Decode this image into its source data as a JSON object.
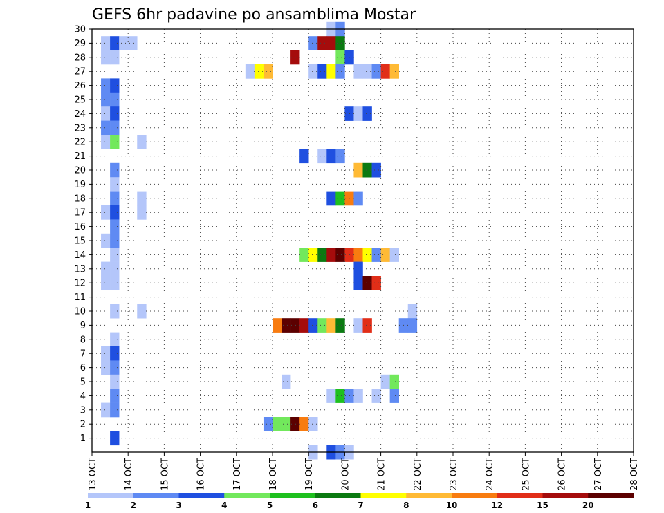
{
  "chart_data": {
    "type": "heatmap",
    "title": "GEFS 6hr padavine po ansamblima Mostar",
    "grid": true,
    "x_tick_labels": [
      "13 OCT",
      "14 OCT",
      "15 OCT",
      "16 OCT",
      "17 OCT",
      "18 OCT",
      "19 OCT",
      "20 OCT",
      "21 OCT",
      "22 OCT",
      "23 OCT",
      "24 OCT",
      "25 OCT",
      "26 OCT",
      "27 OCT",
      "28 OCT"
    ],
    "y_tick_labels": [
      "1",
      "2",
      "3",
      "4",
      "5",
      "6",
      "7",
      "8",
      "9",
      "10",
      "11",
      "12",
      "13",
      "14",
      "15",
      "16",
      "17",
      "18",
      "19",
      "20",
      "21",
      "22",
      "23",
      "24",
      "25",
      "26",
      "27",
      "28",
      "29",
      "30"
    ],
    "y_range": [
      0,
      30
    ],
    "steps_per_day": 4,
    "colorbar": {
      "colors": [
        "#b4c6fa",
        "#5f8af3",
        "#1f4fe0",
        "#72e85c",
        "#1ec01e",
        "#0b7a11",
        "#ffff00",
        "#ffba35",
        "#f87c10",
        "#e12e18",
        "#a50c0c",
        "#5c0000"
      ],
      "labels": [
        "1",
        "2",
        "3",
        "4",
        "5",
        "6",
        "7",
        "8",
        "10",
        "12",
        "15",
        "20"
      ]
    },
    "cells": [
      {
        "m": 30,
        "s": [
          [
            26,
            0
          ],
          [
            27,
            1
          ]
        ]
      },
      {
        "m": 29,
        "s": [
          [
            1,
            0
          ],
          [
            2,
            2
          ],
          [
            3,
            0
          ],
          [
            4,
            0
          ],
          [
            24,
            1
          ],
          [
            25,
            10
          ],
          [
            26,
            10
          ],
          [
            27,
            5
          ]
        ]
      },
      {
        "m": 28,
        "s": [
          [
            1,
            0
          ],
          [
            2,
            0
          ],
          [
            22,
            10
          ],
          [
            27,
            3
          ],
          [
            28,
            2
          ]
        ]
      },
      {
        "m": 27,
        "s": [
          [
            17,
            0
          ],
          [
            18,
            6
          ],
          [
            19,
            7
          ],
          [
            24,
            0
          ],
          [
            25,
            2
          ],
          [
            26,
            6
          ],
          [
            27,
            1
          ],
          [
            29,
            0
          ],
          [
            30,
            0
          ],
          [
            31,
            1
          ],
          [
            32,
            9
          ],
          [
            33,
            7
          ]
        ]
      },
      {
        "m": 26,
        "s": [
          [
            1,
            1
          ],
          [
            2,
            2
          ]
        ]
      },
      {
        "m": 25,
        "s": [
          [
            1,
            1
          ],
          [
            2,
            1
          ]
        ]
      },
      {
        "m": 24,
        "s": [
          [
            1,
            0
          ],
          [
            2,
            2
          ],
          [
            28,
            2
          ],
          [
            29,
            0
          ],
          [
            30,
            2
          ]
        ]
      },
      {
        "m": 23,
        "s": [
          [
            1,
            1
          ],
          [
            2,
            1
          ]
        ]
      },
      {
        "m": 22,
        "s": [
          [
            1,
            0
          ],
          [
            2,
            3
          ],
          [
            5,
            0
          ]
        ]
      },
      {
        "m": 21,
        "s": [
          [
            23,
            2
          ],
          [
            25,
            0
          ],
          [
            26,
            2
          ],
          [
            27,
            1
          ]
        ]
      },
      {
        "m": 20,
        "s": [
          [
            2,
            1
          ],
          [
            29,
            7
          ],
          [
            30,
            5
          ],
          [
            31,
            2
          ]
        ]
      },
      {
        "m": 19,
        "s": [
          [
            2,
            0
          ]
        ]
      },
      {
        "m": 18,
        "s": [
          [
            2,
            1
          ],
          [
            5,
            0
          ],
          [
            26,
            2
          ],
          [
            27,
            4
          ],
          [
            28,
            8
          ],
          [
            29,
            1
          ]
        ]
      },
      {
        "m": 17,
        "s": [
          [
            1,
            0
          ],
          [
            2,
            2
          ],
          [
            5,
            0
          ]
        ]
      },
      {
        "m": 16,
        "s": [
          [
            2,
            1
          ]
        ]
      },
      {
        "m": 15,
        "s": [
          [
            1,
            0
          ],
          [
            2,
            1
          ]
        ]
      },
      {
        "m": 14,
        "s": [
          [
            2,
            0
          ],
          [
            23,
            3
          ],
          [
            24,
            6
          ],
          [
            25,
            5
          ],
          [
            26,
            10
          ],
          [
            27,
            11
          ],
          [
            28,
            9
          ],
          [
            29,
            8
          ],
          [
            30,
            6
          ],
          [
            31,
            1
          ],
          [
            32,
            7
          ],
          [
            33,
            0
          ]
        ]
      },
      {
        "m": 13,
        "s": [
          [
            1,
            0
          ],
          [
            2,
            0
          ],
          [
            29,
            2
          ]
        ]
      },
      {
        "m": 12,
        "s": [
          [
            1,
            0
          ],
          [
            2,
            0
          ],
          [
            29,
            2
          ],
          [
            30,
            11
          ],
          [
            31,
            9
          ]
        ]
      },
      {
        "m": 10,
        "s": [
          [
            2,
            0
          ],
          [
            5,
            0
          ],
          [
            35,
            0
          ]
        ]
      },
      {
        "m": 9,
        "s": [
          [
            20,
            8
          ],
          [
            21,
            11
          ],
          [
            22,
            11
          ],
          [
            23,
            10
          ],
          [
            24,
            2
          ],
          [
            25,
            3
          ],
          [
            26,
            7
          ],
          [
            27,
            5
          ],
          [
            29,
            0
          ],
          [
            30,
            9
          ],
          [
            34,
            1
          ],
          [
            35,
            1
          ]
        ]
      },
      {
        "m": 8,
        "s": [
          [
            2,
            0
          ]
        ]
      },
      {
        "m": 7,
        "s": [
          [
            1,
            0
          ],
          [
            2,
            2
          ]
        ]
      },
      {
        "m": 6,
        "s": [
          [
            1,
            0
          ],
          [
            2,
            1
          ]
        ]
      },
      {
        "m": 5,
        "s": [
          [
            2,
            0
          ],
          [
            21,
            0
          ],
          [
            32,
            0
          ],
          [
            33,
            3
          ]
        ]
      },
      {
        "m": 4,
        "s": [
          [
            2,
            1
          ],
          [
            26,
            0
          ],
          [
            27,
            4
          ],
          [
            28,
            1
          ],
          [
            29,
            0
          ],
          [
            31,
            0
          ],
          [
            33,
            1
          ]
        ]
      },
      {
        "m": 3,
        "s": [
          [
            1,
            0
          ],
          [
            2,
            1
          ]
        ]
      },
      {
        "m": 2,
        "s": [
          [
            19,
            1
          ],
          [
            20,
            3
          ],
          [
            21,
            3
          ],
          [
            22,
            11
          ],
          [
            23,
            8
          ],
          [
            24,
            0
          ]
        ]
      },
      {
        "m": 1,
        "s": [
          [
            2,
            2
          ]
        ]
      },
      {
        "m": 0,
        "s": [
          [
            24,
            0
          ],
          [
            26,
            2
          ],
          [
            27,
            1
          ],
          [
            28,
            0
          ]
        ]
      }
    ]
  }
}
